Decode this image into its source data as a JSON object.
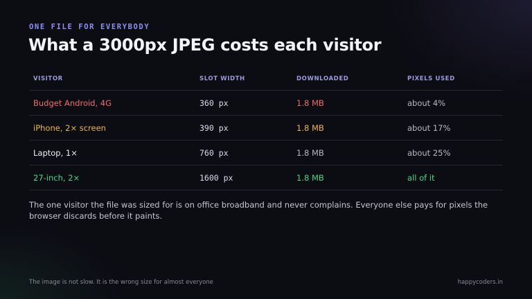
{
  "kicker": "ONE FILE FOR EVERYBODY",
  "title": "What a 3000px JPEG costs each visitor",
  "table": {
    "headers": [
      "VISITOR",
      "SLOT WIDTH",
      "DOWNLOADED",
      "PIXELS USED"
    ],
    "rows": [
      [
        "Budget Android, 4G",
        "360 px",
        "1.8 MB",
        "about 4%"
      ],
      [
        "iPhone, 2× screen",
        "390 px",
        "1.8 MB",
        "about 17%"
      ],
      [
        "Laptop, 1×",
        "760 px",
        "1.8 MB",
        "about 25%"
      ],
      [
        "27-inch, 2×",
        "1600 px",
        "1.8 MB",
        "all of it"
      ]
    ]
  },
  "body": "The one visitor the file was sized for is on office broadband and never complains. Everyone else pays for pixels the browser discards before it paints.",
  "footer": {
    "left": "The image is not slow. It is the wrong size for almost everyone",
    "right": "happycoders.in"
  }
}
